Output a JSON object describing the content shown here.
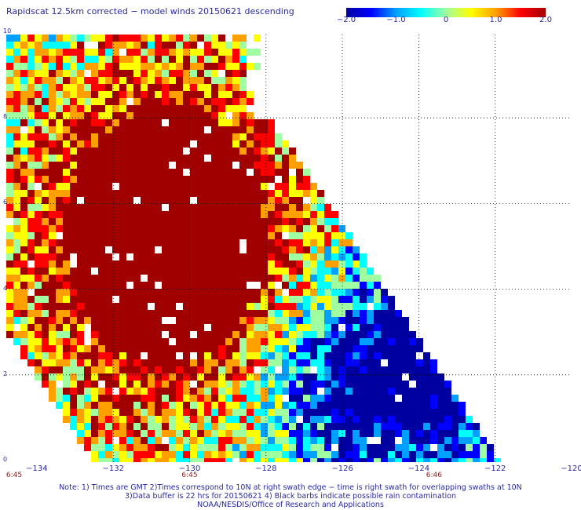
{
  "title": "Rapidscat 12.5km corrected − model winds 20150621 descending",
  "colorbar": {
    "labels": [
      "−2.0",
      "−1.0",
      "0",
      "1.0",
      "2.0"
    ],
    "values": [
      -2.0,
      -1.0,
      0,
      1.0,
      2.0
    ],
    "range": [
      -2.0,
      2.0
    ],
    "colors": [
      "#0000a0",
      "#0000ff",
      "#00a0ff",
      "#00ffff",
      "#a0ffa0",
      "#ffff00",
      "#ffa000",
      "#ff0000",
      "#a00000"
    ]
  },
  "y_axis": {
    "labels": [
      "10",
      "8",
      "6",
      "4",
      "2",
      "0"
    ],
    "range": [
      0,
      10
    ]
  },
  "x_axis": {
    "labels": [
      "−134",
      "−132",
      "−130",
      "−128",
      "−126",
      "−124",
      "−122",
      "−120"
    ],
    "range": [
      -134.8,
      -120
    ]
  },
  "time_labels": [
    {
      "text": "6:45",
      "lon": -134.8
    },
    {
      "text": "6:45",
      "lon": -130
    },
    {
      "text": "6:46",
      "lon": -123.6
    }
  ],
  "notes": [
    "Note: 1) Times are GMT 2)Times correspond to 10N at right swath edge − time is right swath for overlapping swaths at 10N",
    "3)Data buffer is 22 hrs for 20150621 4) Black barbs indicate possible rain contamination",
    "NOAA/NESDIS/Office of Research and Applications"
  ]
}
